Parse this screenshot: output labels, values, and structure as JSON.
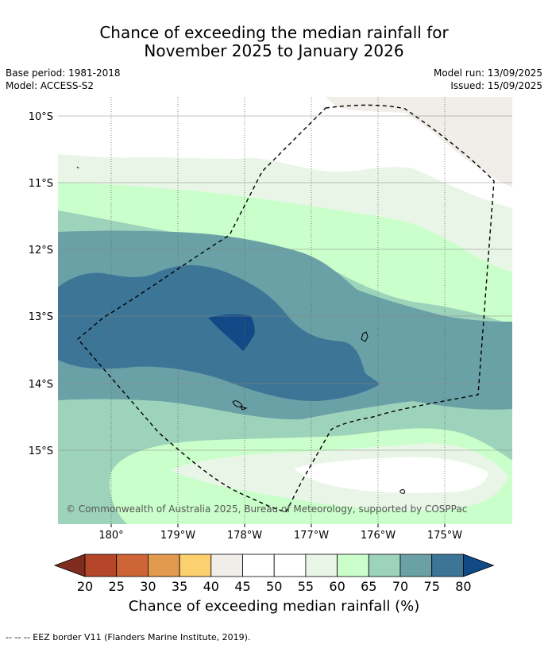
{
  "title_line1": "Chance of exceeding the median rainfall for",
  "title_line2": "November 2025 to January 2026",
  "base_period": "Base period: 1981-2018",
  "model": "Model: ACCESS-S2",
  "model_run": "Model run: 13/09/2025",
  "issued": "Issued: 15/09/2025",
  "copyright": "© Commonwealth of Australia 2025, Bureau of Meteorology, supported by COSPPac",
  "lat_labels": [
    "10°S",
    "11°S",
    "12°S",
    "13°S",
    "14°S",
    "15°S"
  ],
  "lon_labels": [
    "180°",
    "179°W",
    "178°W",
    "177°W",
    "176°W",
    "175°W"
  ],
  "colorbar": {
    "ticks": [
      "20",
      "25",
      "30",
      "35",
      "40",
      "45",
      "50",
      "55",
      "60",
      "65",
      "70",
      "75",
      "80"
    ],
    "colors": {
      "below_20": "#7f2c1e",
      "20-25": "#b5462a",
      "25-30": "#cd6536",
      "30-35": "#e29a4e",
      "35-40": "#fdd06f",
      "40-45": "#f1ede8",
      "45-50": "#ffffff",
      "50-55": "#ffffff",
      "55-60": "#e9f6e7",
      "60-65": "#caffcb",
      "65-70": "#9ed3bb",
      "70-75": "#6aa1a6",
      "75-80": "#3d7596",
      "above_80": "#124a88"
    },
    "label": "Chance of exceeding median rainfall (%)"
  },
  "footnote": "--  --  -- EEZ border V11 (Flanders Marine Institute, 2019)."
}
